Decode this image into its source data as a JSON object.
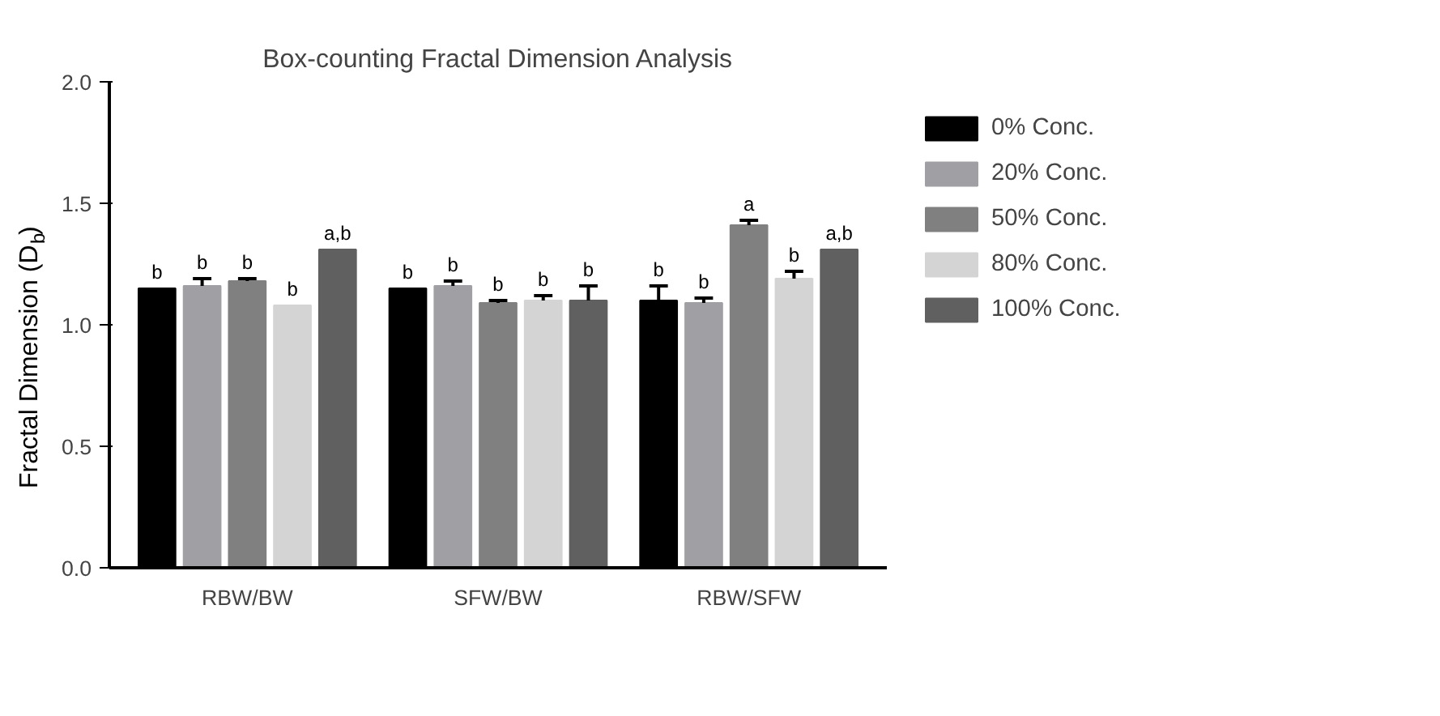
{
  "chart_data": {
    "type": "bar",
    "title": "Box-counting Fractal Dimension Analysis",
    "ylabel": "Fractal Dimension (D$_{b}$)",
    "categories": [
      "RBW/BW",
      "SFW/BW",
      "RBW/SFW"
    ],
    "series": [
      {
        "name": "0% Conc.",
        "color": "#000000",
        "values": [
          1.15,
          1.15,
          1.1
        ],
        "errors": [
          null,
          null,
          0.06
        ],
        "value_labels": [
          "b",
          "b",
          "b"
        ]
      },
      {
        "name": "20% Conc.",
        "color": "#a0a0a4",
        "values": [
          1.16,
          1.16,
          1.09
        ],
        "errors": [
          0.03,
          0.02,
          0.02
        ],
        "value_labels": [
          "b",
          "b",
          "b"
        ]
      },
      {
        "name": "50% Conc.",
        "color": "#808080",
        "values": [
          1.18,
          1.09,
          1.41
        ],
        "errors": [
          0.01,
          0.01,
          0.02
        ],
        "value_labels": [
          "b",
          "b",
          "a"
        ]
      },
      {
        "name": "80% Conc.",
        "color": "#d4d4d4",
        "values": [
          1.08,
          1.1,
          1.19
        ],
        "errors": [
          null,
          0.02,
          0.03
        ],
        "value_labels": [
          "b",
          "b",
          "b"
        ]
      },
      {
        "name": "100% Conc.",
        "color": "#606060",
        "values": [
          1.31,
          1.1,
          1.31
        ],
        "errors": [
          null,
          0.06,
          null
        ],
        "value_labels": [
          "a,b",
          "b",
          "a,b"
        ]
      }
    ],
    "ylim": [
      0,
      2.0
    ],
    "yticks": [
      {
        "value": 0,
        "label": "0.0"
      },
      0.5,
      {
        "value": 1,
        "label": "1.0"
      },
      1.5,
      {
        "value": 2,
        "label": "2.0"
      }
    ],
    "grid": false,
    "legend": "right"
  }
}
